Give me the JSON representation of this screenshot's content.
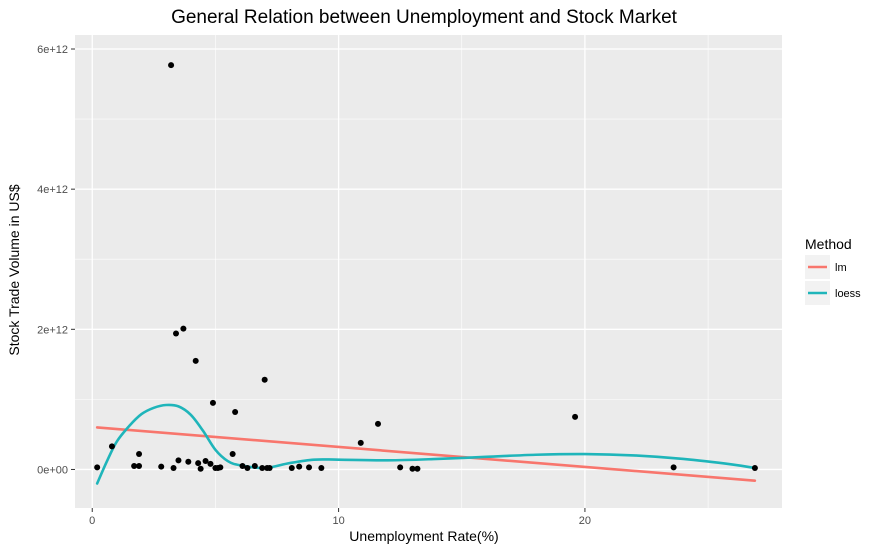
{
  "chart_data": {
    "type": "scatter",
    "title": "General Relation between Unemployment and Stock Market",
    "xlabel": "Unemployment Rate(%)",
    "ylabel": "Stock Trade Volume in US$",
    "xlim": [
      -0.7,
      28.0
    ],
    "ylim": [
      -550000000000.0,
      6200000000000.0
    ],
    "x_ticks": [
      {
        "value": 0,
        "label": "0"
      },
      {
        "value": 10,
        "label": "10"
      },
      {
        "value": 20,
        "label": "20"
      }
    ],
    "y_ticks": [
      {
        "value": 0,
        "label": "0e+00"
      },
      {
        "value": 2000000000000.0,
        "label": "2e+12"
      },
      {
        "value": 4000000000000.0,
        "label": "4e+12"
      },
      {
        "value": 6000000000000.0,
        "label": "6e+12"
      }
    ],
    "grid": true,
    "legend": {
      "title": "Method",
      "placement": "right",
      "entries": [
        {
          "label": "lm",
          "color": "#F8766D"
        },
        {
          "label": "loess",
          "color": "#1FB5BA"
        }
      ]
    },
    "points": {
      "color": "#000000",
      "x": [
        0.2,
        0.8,
        1.7,
        1.9,
        1.9,
        2.8,
        3.2,
        3.3,
        3.4,
        3.5,
        3.7,
        3.9,
        4.2,
        4.3,
        4.4,
        4.6,
        4.8,
        4.9,
        5.0,
        5.1,
        5.2,
        5.7,
        5.8,
        6.1,
        6.3,
        6.6,
        6.9,
        7.0,
        7.1,
        7.2,
        8.1,
        8.4,
        8.8,
        9.3,
        10.9,
        11.6,
        12.5,
        13.0,
        13.2,
        19.6,
        23.6,
        26.9
      ],
      "y": [
        30000000000.0,
        330000000000.0,
        50000000000.0,
        50000000000.0,
        220000000000.0,
        40000000000.0,
        5770000000000.0,
        20000000000.0,
        1940000000000.0,
        130000000000.0,
        2010000000000.0,
        110000000000.0,
        1550000000000.0,
        90000000000.0,
        10000000000.0,
        120000000000.0,
        80000000000.0,
        950000000000.0,
        20000000000.0,
        20000000000.0,
        30000000000.0,
        220000000000.0,
        820000000000.0,
        50000000000.0,
        20000000000.0,
        50000000000.0,
        20000000000.0,
        1280000000000.0,
        20000000000.0,
        20000000000.0,
        20000000000.0,
        40000000000.0,
        30000000000.0,
        20000000000.0,
        380000000000.0,
        650000000000.0,
        30000000000.0,
        10000000000.0,
        10000000000.0,
        750000000000.0,
        30000000000.0,
        20000000000.0
      ]
    },
    "series": [
      {
        "name": "lm",
        "color": "#F8766D",
        "x": [
          0.2,
          26.9
        ],
        "y": [
          600000000000.0,
          -160000000000.0
        ]
      },
      {
        "name": "loess",
        "color": "#1FB5BA",
        "x": [
          0.2,
          0.6,
          1.0,
          1.5,
          2.0,
          2.5,
          3.0,
          3.5,
          4.0,
          4.5,
          5.0,
          5.5,
          6.0,
          7.0,
          8.0,
          9.0,
          10.0,
          12.0,
          14.0,
          16.0,
          18.0,
          20.0,
          22.0,
          24.0,
          26.0,
          26.9
        ],
        "y": [
          -200000000000.0,
          120000000000.0,
          400000000000.0,
          620000000000.0,
          790000000000.0,
          880000000000.0,
          920000000000.0,
          900000000000.0,
          780000000000.0,
          550000000000.0,
          280000000000.0,
          120000000000.0,
          60000000000.0,
          20000000000.0,
          90000000000.0,
          140000000000.0,
          140000000000.0,
          130000000000.0,
          150000000000.0,
          180000000000.0,
          210000000000.0,
          220000000000.0,
          200000000000.0,
          150000000000.0,
          70000000000.0,
          20000000000.0
        ]
      }
    ]
  }
}
